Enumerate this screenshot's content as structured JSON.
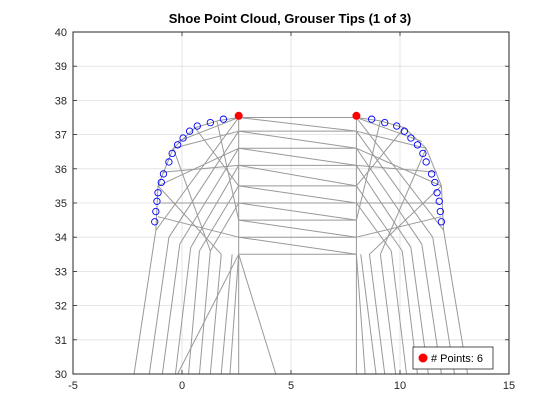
{
  "chart_data": {
    "type": "scatter",
    "title": "Shoe Point Cloud, Grouser Tips (1 of 3)",
    "xlabel": "",
    "ylabel": "",
    "xlim": [
      -5,
      15
    ],
    "ylim": [
      30,
      40
    ],
    "xticks": [
      -5,
      0,
      5,
      10,
      15
    ],
    "yticks": [
      30,
      31,
      32,
      33,
      34,
      35,
      36,
      37,
      38,
      39,
      40
    ],
    "grid": true,
    "legend_position": "bottom-right",
    "colors": {
      "mesh": "#999999",
      "candidate": "#0000ff",
      "selected": "#ff0000",
      "grid": "#dfdfdf",
      "axis": "#262626"
    },
    "series": [
      {
        "name": "",
        "style": "line-mesh",
        "segments": [
          [
            [
              -2.2,
              30
            ],
            [
              -1.2,
              34.2
            ]
          ],
          [
            [
              -1.5,
              30
            ],
            [
              -0.6,
              34.0
            ]
          ],
          [
            [
              -0.9,
              30
            ],
            [
              -0.1,
              33.8
            ]
          ],
          [
            [
              -0.3,
              30
            ],
            [
              0.4,
              33.7
            ]
          ],
          [
            [
              0.3,
              30
            ],
            [
              0.8,
              33.6
            ]
          ],
          [
            [
              0.8,
              30
            ],
            [
              1.3,
              33.6
            ]
          ],
          [
            [
              1.3,
              30
            ],
            [
              1.8,
              33.5
            ]
          ],
          [
            [
              1.8,
              30
            ],
            [
              2.3,
              33.5
            ]
          ],
          [
            [
              2.2,
              30
            ],
            [
              2.6,
              33.5
            ]
          ],
          [
            [
              2.6,
              30
            ],
            [
              2.6,
              33.5
            ]
          ],
          [
            [
              -0.2,
              30
            ],
            [
              2.6,
              33.5
            ]
          ],
          [
            [
              2.6,
              33.5
            ],
            [
              4.3,
              30
            ]
          ],
          [
            [
              2.6,
              33.5
            ],
            [
              8.0,
              33.5
            ]
          ],
          [
            [
              13.1,
              30
            ],
            [
              12.0,
              34.2
            ]
          ],
          [
            [
              12.5,
              30
            ],
            [
              11.5,
              34.0
            ]
          ],
          [
            [
              11.9,
              30
            ],
            [
              11.0,
              33.8
            ]
          ],
          [
            [
              11.3,
              30
            ],
            [
              10.5,
              33.7
            ]
          ],
          [
            [
              10.8,
              30
            ],
            [
              10.1,
              33.6
            ]
          ],
          [
            [
              10.3,
              30
            ],
            [
              9.6,
              33.6
            ]
          ],
          [
            [
              9.8,
              30
            ],
            [
              9.1,
              33.5
            ]
          ],
          [
            [
              9.3,
              30
            ],
            [
              8.6,
              33.5
            ]
          ],
          [
            [
              8.9,
              30
            ],
            [
              8.2,
              33.5
            ]
          ],
          [
            [
              8.4,
              30
            ],
            [
              8.0,
              33.5
            ]
          ],
          [
            [
              8.0,
              30
            ],
            [
              8.0,
              33.5
            ]
          ],
          [
            [
              -1.2,
              34.2
            ],
            [
              -1.1,
              35.5
            ]
          ],
          [
            [
              -1.1,
              35.5
            ],
            [
              -0.4,
              36.6
            ]
          ],
          [
            [
              -0.4,
              36.6
            ],
            [
              0.6,
              37.2
            ]
          ],
          [
            [
              0.6,
              37.2
            ],
            [
              1.6,
              37.4
            ]
          ],
          [
            [
              1.6,
              37.4
            ],
            [
              2.6,
              37.5
            ]
          ],
          [
            [
              12.0,
              34.2
            ],
            [
              11.9,
              35.5
            ]
          ],
          [
            [
              11.9,
              35.5
            ],
            [
              11.2,
              36.6
            ]
          ],
          [
            [
              11.2,
              36.6
            ],
            [
              10.2,
              37.2
            ]
          ],
          [
            [
              10.2,
              37.2
            ],
            [
              9.1,
              37.4
            ]
          ],
          [
            [
              9.1,
              37.4
            ],
            [
              8.0,
              37.5
            ]
          ],
          [
            [
              2.6,
              37.5
            ],
            [
              8.0,
              37.5
            ]
          ],
          [
            [
              2.6,
              37.1
            ],
            [
              8.0,
              37.1
            ]
          ],
          [
            [
              2.6,
              36.6
            ],
            [
              8.0,
              36.6
            ]
          ],
          [
            [
              2.6,
              36.1
            ],
            [
              8.0,
              36.1
            ]
          ],
          [
            [
              2.6,
              35.5
            ],
            [
              8.0,
              35.5
            ]
          ],
          [
            [
              2.6,
              35.0
            ],
            [
              8.0,
              35.0
            ]
          ],
          [
            [
              2.6,
              34.5
            ],
            [
              8.0,
              34.5
            ]
          ],
          [
            [
              2.6,
              34.0
            ],
            [
              8.0,
              34.0
            ]
          ],
          [
            [
              2.6,
              37.5
            ],
            [
              8.0,
              37.1
            ]
          ],
          [
            [
              2.6,
              37.1
            ],
            [
              8.0,
              36.6
            ]
          ],
          [
            [
              2.6,
              36.6
            ],
            [
              8.0,
              36.1
            ]
          ],
          [
            [
              2.6,
              36.1
            ],
            [
              8.0,
              35.5
            ]
          ],
          [
            [
              2.6,
              35.5
            ],
            [
              8.0,
              35.0
            ]
          ],
          [
            [
              2.6,
              35.0
            ],
            [
              8.0,
              34.5
            ]
          ],
          [
            [
              2.6,
              34.5
            ],
            [
              8.0,
              34.0
            ]
          ],
          [
            [
              2.6,
              34.0
            ],
            [
              8.0,
              33.5
            ]
          ],
          [
            [
              2.6,
              33.5
            ],
            [
              2.6,
              37.5
            ]
          ],
          [
            [
              8.0,
              33.5
            ],
            [
              8.0,
              37.5
            ]
          ],
          [
            [
              -1.2,
              34.2
            ],
            [
              2.6,
              37.5
            ]
          ],
          [
            [
              -0.6,
              34.0
            ],
            [
              2.6,
              37.1
            ]
          ],
          [
            [
              -0.1,
              33.8
            ],
            [
              2.6,
              36.6
            ]
          ],
          [
            [
              0.4,
              33.7
            ],
            [
              2.6,
              36.1
            ]
          ],
          [
            [
              0.8,
              33.6
            ],
            [
              2.6,
              35.5
            ]
          ],
          [
            [
              1.3,
              33.6
            ],
            [
              2.6,
              35.0
            ]
          ],
          [
            [
              -1.1,
              35.5
            ],
            [
              2.6,
              36.6
            ]
          ],
          [
            [
              -0.4,
              36.6
            ],
            [
              2.6,
              37.1
            ]
          ],
          [
            [
              0.6,
              37.2
            ],
            [
              2.6,
              35.5
            ]
          ],
          [
            [
              1.6,
              37.4
            ],
            [
              2.6,
              34.5
            ]
          ],
          [
            [
              -1.1,
              35.5
            ],
            [
              1.8,
              33.5
            ]
          ],
          [
            [
              -0.4,
              36.6
            ],
            [
              1.3,
              33.6
            ]
          ],
          [
            [
              -1.1,
              34.6
            ],
            [
              2.6,
              34.0
            ]
          ],
          [
            [
              -1.0,
              35.0
            ],
            [
              2.6,
              35.0
            ]
          ],
          [
            [
              -0.9,
              35.9
            ],
            [
              2.6,
              36.1
            ]
          ],
          [
            [
              -0.2,
              36.8
            ],
            [
              2.6,
              37.5
            ]
          ],
          [
            [
              12.0,
              34.2
            ],
            [
              8.0,
              37.5
            ]
          ],
          [
            [
              11.5,
              34.0
            ],
            [
              8.0,
              37.1
            ]
          ],
          [
            [
              11.0,
              33.8
            ],
            [
              8.0,
              36.6
            ]
          ],
          [
            [
              10.5,
              33.7
            ],
            [
              8.0,
              36.1
            ]
          ],
          [
            [
              10.1,
              33.6
            ],
            [
              8.0,
              35.5
            ]
          ],
          [
            [
              9.6,
              33.6
            ],
            [
              8.0,
              35.0
            ]
          ],
          [
            [
              11.9,
              35.5
            ],
            [
              8.0,
              36.6
            ]
          ],
          [
            [
              11.2,
              36.6
            ],
            [
              8.0,
              37.1
            ]
          ],
          [
            [
              10.2,
              37.2
            ],
            [
              8.0,
              35.5
            ]
          ],
          [
            [
              9.1,
              37.4
            ],
            [
              8.0,
              34.5
            ]
          ],
          [
            [
              11.9,
              35.5
            ],
            [
              8.6,
              33.5
            ]
          ],
          [
            [
              11.2,
              36.6
            ],
            [
              9.1,
              33.5
            ]
          ],
          [
            [
              11.9,
              34.6
            ],
            [
              8.0,
              34.0
            ]
          ],
          [
            [
              11.8,
              35.0
            ],
            [
              8.0,
              35.0
            ]
          ],
          [
            [
              11.7,
              35.9
            ],
            [
              8.0,
              36.1
            ]
          ],
          [
            [
              11.0,
              36.8
            ],
            [
              8.0,
              37.5
            ]
          ]
        ]
      },
      {
        "name": "",
        "style": "open-circle",
        "points": [
          [
            -1.25,
            34.45
          ],
          [
            -1.2,
            34.75
          ],
          [
            -1.15,
            35.05
          ],
          [
            -1.1,
            35.3
          ],
          [
            -0.95,
            35.6
          ],
          [
            -0.85,
            35.85
          ],
          [
            -0.6,
            36.2
          ],
          [
            -0.45,
            36.45
          ],
          [
            -0.2,
            36.7
          ],
          [
            0.05,
            36.9
          ],
          [
            0.35,
            37.1
          ],
          [
            0.7,
            37.25
          ],
          [
            1.3,
            37.35
          ],
          [
            1.9,
            37.45
          ],
          [
            11.9,
            34.45
          ],
          [
            11.85,
            34.75
          ],
          [
            11.8,
            35.05
          ],
          [
            11.7,
            35.3
          ],
          [
            11.6,
            35.6
          ],
          [
            11.45,
            35.85
          ],
          [
            11.2,
            36.2
          ],
          [
            11.05,
            36.45
          ],
          [
            10.8,
            36.7
          ],
          [
            10.5,
            36.9
          ],
          [
            10.2,
            37.1
          ],
          [
            9.85,
            37.25
          ],
          [
            9.3,
            37.35
          ],
          [
            8.7,
            37.45
          ]
        ]
      },
      {
        "name": "# Points: 6",
        "style": "filled-dot",
        "points": [
          [
            2.6,
            37.55
          ],
          [
            8.0,
            37.55
          ]
        ]
      }
    ]
  }
}
